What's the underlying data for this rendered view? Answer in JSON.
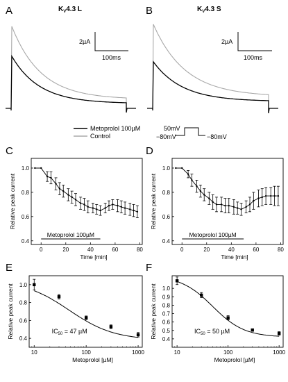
{
  "panel_letters": [
    "A",
    "B",
    "C",
    "D",
    "E",
    "F"
  ],
  "traces": {
    "title_a": "KV4.3 L",
    "title_b": "KV4.3 S",
    "title_a_main": "K",
    "title_a_sub": "V",
    "title_a_rest": "4.3 L",
    "title_b_main": "K",
    "title_b_sub": "V",
    "title_b_rest": "4.3 S",
    "scalebar_current": "2µA",
    "scalebar_time": "100ms",
    "colors": {
      "control": "#a8a8a8",
      "metoprolol": "#000000"
    }
  },
  "legend": {
    "items": [
      {
        "label": "Metoprolol 100µM",
        "color": "#000000"
      },
      {
        "label": "Control",
        "color": "#a8a8a8"
      }
    ]
  },
  "protocol": {
    "step_label": "50mV",
    "holding_label_left": "−80mV",
    "holding_label_right": "−80mV"
  },
  "chart_data": [
    {
      "panel": "C",
      "type": "line",
      "title": "",
      "xlabel": "Time [min]",
      "ylabel": "Relative peak current",
      "xlim": [
        -8,
        82
      ],
      "ylim": [
        0.37,
        1.08
      ],
      "xticks": [
        0,
        20,
        40,
        60,
        80
      ],
      "yticks": [
        0.4,
        0.6,
        0.8,
        1.0
      ],
      "yticklabels": [
        "0.4",
        "0.6",
        "0.8",
        "1.0"
      ],
      "x": [
        -5,
        0,
        5,
        8,
        12,
        15,
        18,
        22,
        25,
        28,
        32,
        35,
        38,
        42,
        45,
        48,
        52,
        55,
        58,
        62,
        65,
        68,
        72,
        75,
        78
      ],
      "y": [
        1.0,
        1.0,
        0.93,
        0.92,
        0.87,
        0.83,
        0.81,
        0.78,
        0.76,
        0.74,
        0.71,
        0.7,
        0.68,
        0.67,
        0.66,
        0.65,
        0.67,
        0.69,
        0.7,
        0.69,
        0.68,
        0.67,
        0.66,
        0.65,
        0.64
      ],
      "yerr": [
        0,
        0,
        0.04,
        0.05,
        0.05,
        0.05,
        0.05,
        0.05,
        0.05,
        0.05,
        0.05,
        0.05,
        0.05,
        0.04,
        0.04,
        0.04,
        0.04,
        0.04,
        0.04,
        0.05,
        0.05,
        0.05,
        0.05,
        0.05,
        0.05
      ],
      "treatment": {
        "label": "Metoprolol 100µM",
        "start": 0,
        "end": 48
      }
    },
    {
      "panel": "D",
      "type": "line",
      "title": "",
      "xlabel": "Time [min]",
      "ylabel": "Relative peak current",
      "xlim": [
        -8,
        82
      ],
      "ylim": [
        0.37,
        1.08
      ],
      "xticks": [
        0,
        20,
        40,
        60,
        80
      ],
      "yticks": [
        0.4,
        0.6,
        0.8,
        1.0
      ],
      "yticklabels": [
        "0.4",
        "0.6",
        "0.8",
        "1.0"
      ],
      "x": [
        -5,
        0,
        5,
        8,
        12,
        15,
        18,
        22,
        25,
        28,
        32,
        35,
        38,
        42,
        45,
        48,
        52,
        55,
        58,
        62,
        65,
        68,
        72,
        75,
        78
      ],
      "y": [
        1.0,
        1.0,
        0.95,
        0.9,
        0.85,
        0.81,
        0.78,
        0.75,
        0.72,
        0.7,
        0.7,
        0.69,
        0.69,
        0.68,
        0.67,
        0.66,
        0.68,
        0.7,
        0.73,
        0.75,
        0.76,
        0.77,
        0.77,
        0.77,
        0.77
      ],
      "yerr": [
        0,
        0,
        0.03,
        0.05,
        0.05,
        0.05,
        0.05,
        0.05,
        0.06,
        0.06,
        0.06,
        0.06,
        0.06,
        0.06,
        0.05,
        0.05,
        0.05,
        0.06,
        0.07,
        0.07,
        0.07,
        0.07,
        0.07,
        0.08,
        0.08
      ],
      "treatment": {
        "label": "Metoprolol 100µM",
        "start": 0,
        "end": 50
      }
    },
    {
      "panel": "E",
      "type": "scatter",
      "title": "",
      "xlabel": "Metoprolol [µM]",
      "ylabel": "Relative peak current",
      "xscale": "log",
      "xlim": [
        8,
        1200
      ],
      "ylim": [
        0.3,
        1.1
      ],
      "xticks": [
        10,
        100,
        1000
      ],
      "xticklabels": [
        "10",
        "100",
        "1000"
      ],
      "yticks": [
        0.4,
        0.6,
        0.8,
        1.0
      ],
      "yticklabels": [
        "0.4",
        "0.6",
        "0.8",
        "1.0"
      ],
      "x": [
        10,
        30,
        100,
        300,
        1000
      ],
      "y": [
        1.0,
        0.865,
        0.63,
        0.53,
        0.44
      ],
      "yerr": [
        0.06,
        0.025,
        0.02,
        0.02,
        0.025
      ],
      "fit": {
        "ic50": 47,
        "top": 1.05,
        "bottom": 0.38,
        "hill": 1.0
      },
      "annotation_main": "IC",
      "annotation_sub": "50",
      "annotation_rest": " = 47 µM"
    },
    {
      "panel": "F",
      "type": "scatter",
      "title": "",
      "xlabel": "Metoprolol [µM]",
      "ylabel": "Relative peak current",
      "xscale": "log",
      "xlim": [
        8,
        1200
      ],
      "ylim": [
        0.3,
        1.15
      ],
      "xticks": [
        10,
        100,
        1000
      ],
      "xticklabels": [
        "10",
        "100",
        "1000"
      ],
      "yticks": [
        0.4,
        0.5,
        0.6,
        0.7,
        0.8,
        0.9,
        1.0
      ],
      "yticklabels": [
        "0.4",
        "0.5",
        "0.6",
        "0.7",
        "0.8",
        "0.9",
        "1.0"
      ],
      "x": [
        10,
        30,
        100,
        300,
        1000
      ],
      "y": [
        1.09,
        0.92,
        0.65,
        0.505,
        0.465
      ],
      "yerr": [
        0.045,
        0.03,
        0.025,
        0.015,
        0.02
      ],
      "fit": {
        "ic50": 50,
        "top": 1.15,
        "bottom": 0.42,
        "hill": 1.4
      },
      "annotation_main": "IC",
      "annotation_sub": "50",
      "annotation_rest": " = 50 µM"
    }
  ]
}
